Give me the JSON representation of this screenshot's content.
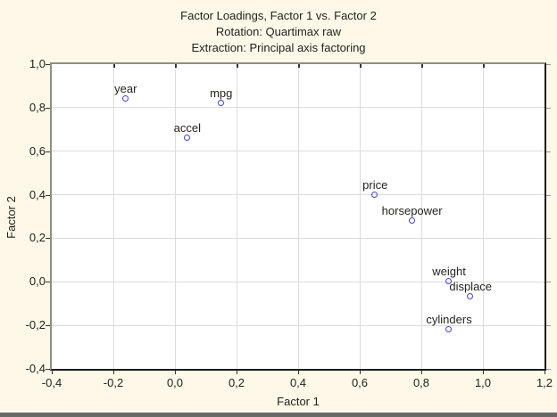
{
  "chart_data": {
    "type": "scatter",
    "title": "Factor Loadings, Factor 1 vs. Factor 2",
    "subtitle1": "Rotation: Quartimax raw",
    "subtitle2": "Extraction: Principal axis factoring",
    "xlabel": "Factor 1",
    "ylabel": "Factor 2",
    "xlim": [
      -0.4,
      1.2
    ],
    "ylim": [
      -0.4,
      1.0
    ],
    "grid": true,
    "legend": "none",
    "xticks": {
      "values": [
        -0.4,
        -0.2,
        0.0,
        0.2,
        0.4,
        0.6,
        0.8,
        1.0,
        1.2
      ],
      "labels": [
        "-0,4",
        "-0,2",
        "0,0",
        "0,2",
        "0,4",
        "0,6",
        "0,8",
        "1,0",
        "1,2"
      ]
    },
    "yticks": {
      "values": [
        1.0,
        0.8,
        0.6,
        0.4,
        0.2,
        0.0,
        -0.2,
        -0.4
      ],
      "labels": [
        "1,0",
        "0,8",
        "0,6",
        "0,4",
        "0,2",
        "0,0",
        "-0,2",
        "-0,4"
      ]
    },
    "points": [
      {
        "label": "year",
        "x": -0.16,
        "y": 0.84
      },
      {
        "label": "mpg",
        "x": 0.15,
        "y": 0.82
      },
      {
        "label": "accel",
        "x": 0.04,
        "y": 0.66
      },
      {
        "label": "price",
        "x": 0.65,
        "y": 0.4
      },
      {
        "label": "horsepower",
        "x": 0.77,
        "y": 0.28
      },
      {
        "label": "weight",
        "x": 0.89,
        "y": 0.0
      },
      {
        "label": "displace",
        "x": 0.96,
        "y": -0.07
      },
      {
        "label": "cylinders",
        "x": 0.89,
        "y": -0.22
      }
    ],
    "colors": {
      "page_bg": "#fdf8e8",
      "plot_bg": "#ffffff",
      "grid": "#dcdcdc",
      "frame_light": "#8f8e85",
      "frame_dark": "#1b1b1b",
      "marker": "#4343cf",
      "text": "#23231e",
      "bottom_bar": "#696969"
    }
  }
}
